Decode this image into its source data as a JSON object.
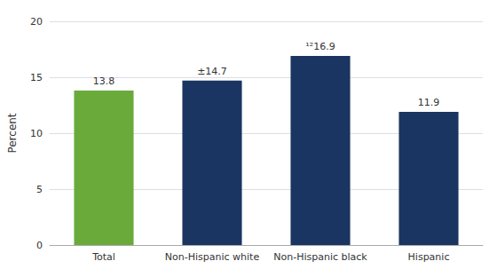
{
  "chart_data": {
    "type": "bar",
    "categories": [
      "Total",
      "Non-Hispanic white",
      "Non-Hispanic black",
      "Hispanic"
    ],
    "values": [
      13.8,
      14.7,
      16.9,
      11.9
    ],
    "value_labels": [
      "13.8",
      "±14.7",
      "¹²16.9",
      "11.9"
    ],
    "colors": [
      "#6aaa3a",
      "#1a3561",
      "#1a3561",
      "#1a3561"
    ],
    "ylabel": "Percent",
    "ylim": [
      0,
      20
    ],
    "yticks": [
      0,
      5,
      10,
      15,
      20
    ],
    "grid": true,
    "data_labels": true
  }
}
